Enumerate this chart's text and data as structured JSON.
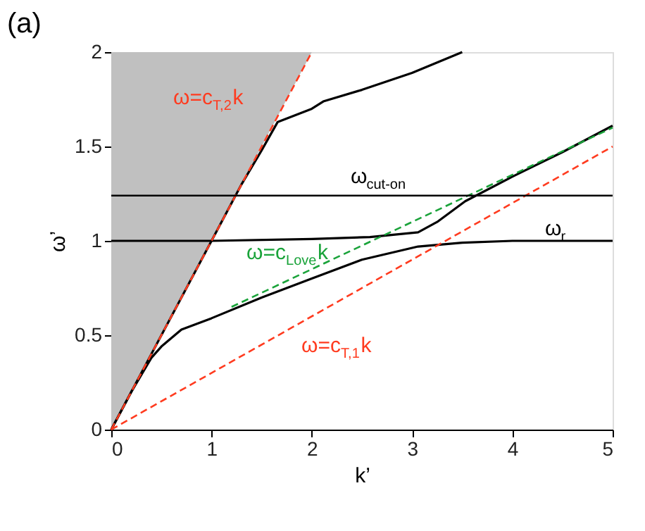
{
  "chart_data": {
    "type": "line",
    "title": "(a)",
    "xlabel": "k’",
    "ylabel": "ω’",
    "xlim": [
      0,
      5
    ],
    "ylim": [
      0,
      2
    ],
    "xticks": [
      0,
      1,
      2,
      3,
      4,
      5
    ],
    "yticks": [
      0,
      0.5,
      1,
      1.5,
      2
    ],
    "series": [
      {
        "color": "#ff3b1f",
        "line_style": "dashed",
        "x": [
          0,
          2
        ],
        "values": [
          0,
          2
        ],
        "lower": [
          0,
          2
        ],
        "upper": [
          2,
          2
        ]
      },
      {
        "color": "#ff3b1f",
        "line_style": "dashed",
        "x": [
          0,
          5
        ],
        "values": [
          0,
          1.5
        ]
      },
      {
        "color": "#1aa33a",
        "line_style": "dashed",
        "x": [
          1.2,
          5
        ],
        "values": [
          0.65,
          1.6
        ]
      },
      {
        "color": "#000000",
        "line_style": "solid",
        "x": [
          0,
          0.5,
          1,
          1.3,
          1.5,
          1.66,
          2,
          2.12,
          2.5,
          3,
          3.5
        ],
        "values": [
          0,
          0.5,
          1,
          1.3,
          1.48,
          1.63,
          1.7,
          1.74,
          1.8,
          1.89,
          2.0
        ]
      },
      {
        "color": "#000000",
        "line_style": "solid",
        "x": [
          0,
          1,
          2,
          2.58,
          3.06,
          3.25,
          3.53,
          4,
          4.5,
          5
        ],
        "values": [
          1,
          1,
          1.01,
          1.02,
          1.045,
          1.1,
          1.21,
          1.34,
          1.47,
          1.61
        ]
      },
      {
        "color": "#000000",
        "line_style": "solid",
        "x": [
          0,
          0.2,
          0.4,
          0.5,
          0.7,
          1,
          1.5,
          2,
          2.5,
          3.06,
          3.5,
          4,
          5
        ],
        "values": [
          0,
          0.2,
          0.38,
          0.44,
          0.53,
          0.59,
          0.7,
          0.8,
          0.9,
          0.97,
          0.99,
          1.0,
          1.0
        ]
      }
    ],
    "ref_lines": [
      {
        "axis": "y",
        "value": 1.24,
        "label": "ω$_{cut-on}$",
        "color": "#000000",
        "line_style": "solid"
      }
    ],
    "annotations": [
      "ω=c$_{T,2}$k",
      "ω=c$_{Love}$k",
      "ω=c$_{T,1}$k",
      "ω$_{r}$"
    ]
  }
}
